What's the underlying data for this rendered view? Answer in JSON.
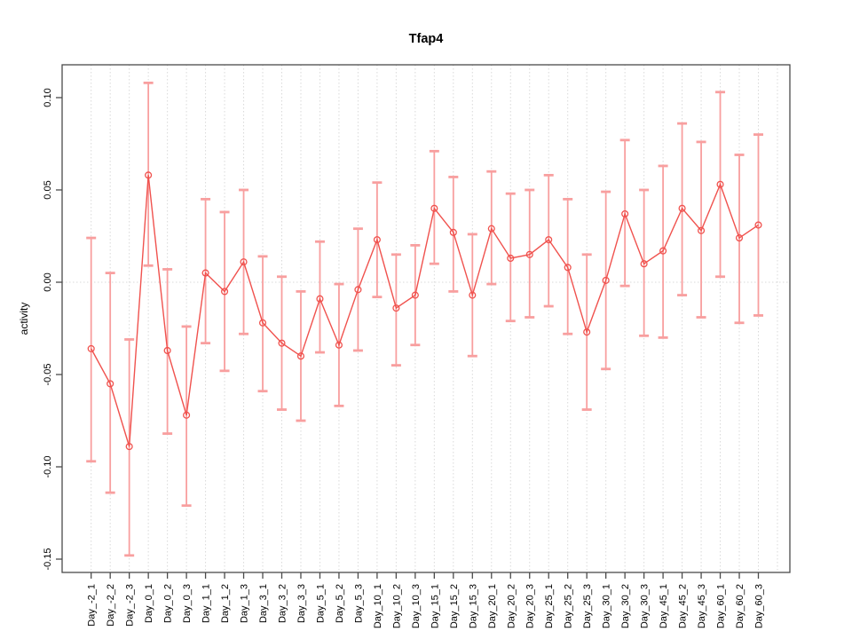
{
  "window": {
    "background": "#ffffff"
  },
  "chart_data": {
    "type": "line",
    "title": "Tfap4",
    "xlabel": "",
    "ylabel": "activity",
    "ylim": [
      -0.157,
      0.118
    ],
    "yticks": [
      0.1,
      0.05,
      0.0,
      -0.05,
      -0.1,
      -0.15
    ],
    "grid": {
      "vertical": "dotted line at every category",
      "horizontal": "dotted line at zero only"
    },
    "legend": "none",
    "categories": [
      "Day_-2_1",
      "Day_-2_2",
      "Day_-2_3",
      "Day_0_1",
      "Day_0_2",
      "Day_0_3",
      "Day_1_1",
      "Day_1_2",
      "Day_1_3",
      "Day_3_1",
      "Day_3_2",
      "Day_3_3",
      "Day_5_1",
      "Day_5_2",
      "Day_5_3",
      "Day_10_1",
      "Day_10_2",
      "Day_10_3",
      "Day_15_1",
      "Day_15_2",
      "Day_15_3",
      "Day_20_1",
      "Day_20_2",
      "Day_20_3",
      "Day_25_1",
      "Day_25_2",
      "Day_25_3",
      "Day_30_1",
      "Day_30_2",
      "Day_30_3",
      "Day_45_1",
      "Day_45_2",
      "Day_45_3",
      "Day_60_1",
      "Day_60_2",
      "Day_60_3"
    ],
    "series": [
      {
        "name": "activity",
        "marker": "open-circle",
        "values": [
          -0.036,
          -0.055,
          -0.089,
          0.058,
          -0.037,
          -0.072,
          0.005,
          -0.005,
          0.011,
          -0.022,
          -0.033,
          -0.04,
          -0.009,
          -0.034,
          -0.004,
          0.023,
          -0.014,
          -0.007,
          0.04,
          0.027,
          -0.007,
          0.029,
          0.013,
          0.015,
          0.023,
          0.008,
          -0.027,
          0.001,
          0.037,
          0.01,
          0.017,
          0.04,
          0.028,
          0.053,
          0.024,
          0.031
        ],
        "error_lower": [
          -0.097,
          -0.114,
          -0.148,
          0.009,
          -0.082,
          -0.121,
          -0.033,
          -0.048,
          -0.028,
          -0.059,
          -0.069,
          -0.075,
          -0.038,
          -0.067,
          -0.037,
          -0.008,
          -0.045,
          -0.034,
          0.01,
          -0.005,
          -0.04,
          -0.001,
          -0.021,
          -0.019,
          -0.013,
          -0.028,
          -0.069,
          -0.047,
          -0.002,
          -0.029,
          -0.03,
          -0.007,
          -0.019,
          0.003,
          -0.022,
          -0.018
        ],
        "error_upper": [
          0.024,
          0.005,
          -0.031,
          0.108,
          0.007,
          -0.024,
          0.045,
          0.038,
          0.05,
          0.014,
          0.003,
          -0.005,
          0.022,
          -0.001,
          0.029,
          0.054,
          0.015,
          0.02,
          0.071,
          0.057,
          0.026,
          0.06,
          0.048,
          0.05,
          0.058,
          0.045,
          0.015,
          0.049,
          0.077,
          0.05,
          0.063,
          0.086,
          0.076,
          0.103,
          0.069,
          0.08
        ]
      }
    ],
    "colors": {
      "line": "#f0524e",
      "marker": "#f0524e",
      "error_bar": "#f89f9f",
      "grid": "#d9d9d9",
      "axis": "#4a4a4a",
      "text": "#000000",
      "background": "#ffffff"
    }
  }
}
